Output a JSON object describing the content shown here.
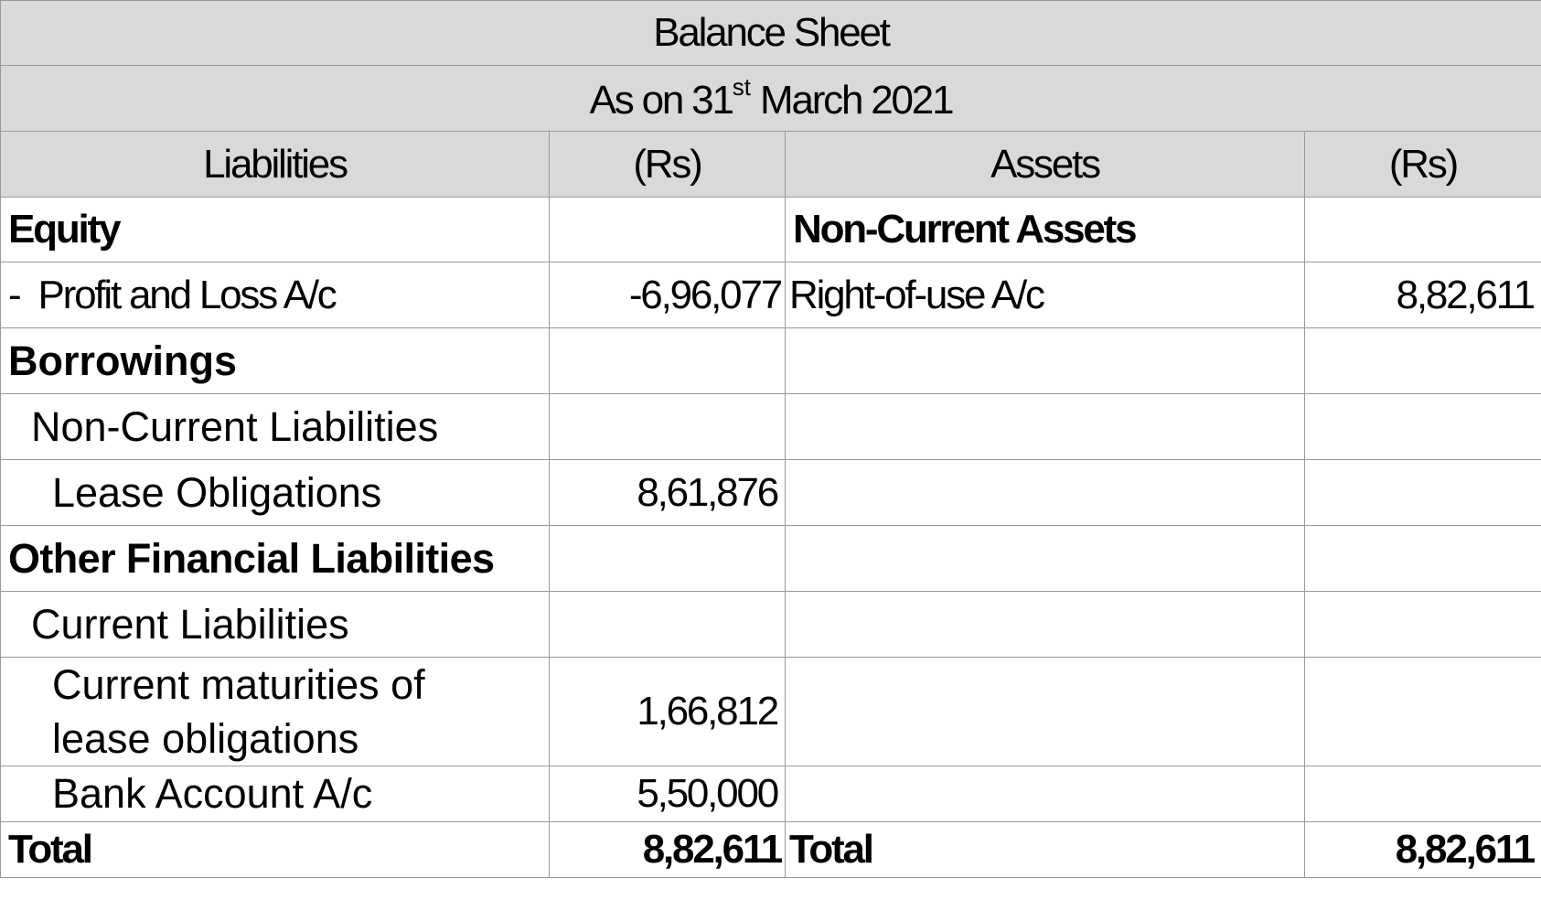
{
  "title": "Balance Sheet",
  "subtitle": {
    "prefix": "As on 31",
    "superscript": "st",
    "suffix": " March 2021"
  },
  "columns": {
    "liabilities": "Liabilities",
    "liabilities_amount": "(Rs)",
    "assets": "Assets",
    "assets_amount": "(Rs)"
  },
  "rows": [
    {
      "liability": "Equity",
      "liability_amount": "",
      "asset": "Non-Current Assets",
      "asset_amount": ""
    },
    {
      "liability": "-  Profit and Loss A/c",
      "liability_amount": "-6,96,077",
      "asset": "Right-of-use A/c",
      "asset_amount": "8,82,611"
    },
    {
      "liability": "Borrowings",
      "liability_amount": "",
      "asset": "",
      "asset_amount": ""
    },
    {
      "liability": "Non-Current Liabilities",
      "liability_amount": "",
      "asset": "",
      "asset_amount": ""
    },
    {
      "liability": "Lease Obligations",
      "liability_amount": "8,61,876",
      "asset": "",
      "asset_amount": ""
    },
    {
      "liability": "Other Financial Liabilities",
      "liability_amount": "",
      "asset": "",
      "asset_amount": ""
    },
    {
      "liability": "Current Liabilities",
      "liability_amount": "",
      "asset": "",
      "asset_amount": ""
    },
    {
      "liability": "Current maturities of lease obligations",
      "liability_amount": "1,66,812",
      "asset": "",
      "asset_amount": ""
    },
    {
      "liability": "Bank Account A/c",
      "liability_amount": "5,50,000",
      "asset": "",
      "asset_amount": ""
    }
  ],
  "total": {
    "liability_label": "Total",
    "liability_amount": "8,82,611",
    "asset_label": "Total",
    "asset_amount": "8,82,611"
  }
}
